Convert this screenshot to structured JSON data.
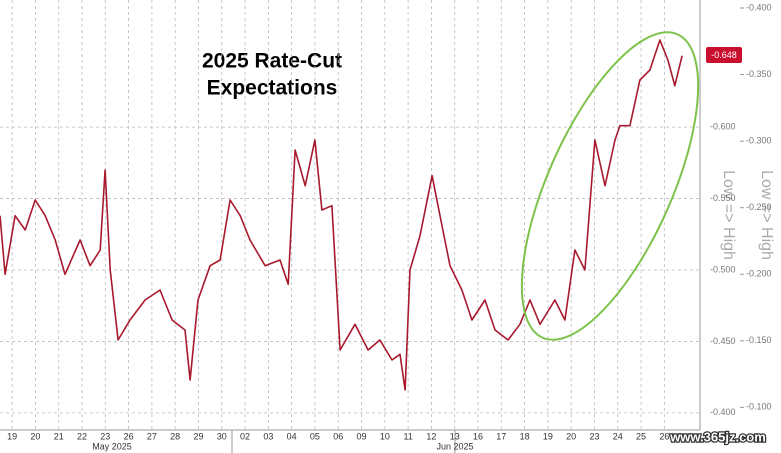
{
  "chart_data": {
    "type": "line",
    "title": "2025 Rate-Cut",
    "subtitle": "Expectations",
    "y_label": "Low => High",
    "y2_label": "Low => High",
    "current_value_label": "-0.648",
    "month_labels": [
      "May 2025",
      "Jun 2025"
    ],
    "watermark": "www.365jz.com",
    "xlim": [
      -0.52,
      29.53
    ],
    "xticks": [
      {
        "value": 0,
        "label": "19"
      },
      {
        "value": 1,
        "label": "20"
      },
      {
        "value": 2,
        "label": "21"
      },
      {
        "value": 3,
        "label": "22"
      },
      {
        "value": 4,
        "label": "23"
      },
      {
        "value": 5,
        "label": "26"
      },
      {
        "value": 6,
        "label": "27"
      },
      {
        "value": 7,
        "label": "28"
      },
      {
        "value": 8,
        "label": "29"
      },
      {
        "value": 9,
        "label": "30"
      },
      {
        "value": 10,
        "label": "02"
      },
      {
        "value": 11,
        "label": "03"
      },
      {
        "value": 12,
        "label": "04"
      },
      {
        "value": 13,
        "label": "05"
      },
      {
        "value": 14,
        "label": "06"
      },
      {
        "value": 15,
        "label": "09"
      },
      {
        "value": 16,
        "label": "10"
      },
      {
        "value": 17,
        "label": "11"
      },
      {
        "value": 18,
        "label": "12"
      },
      {
        "value": 19,
        "label": "13"
      },
      {
        "value": 20,
        "label": "16"
      },
      {
        "value": 21,
        "label": "17"
      },
      {
        "value": 22,
        "label": "18"
      },
      {
        "value": 23,
        "label": "19"
      },
      {
        "value": 24,
        "label": "20"
      },
      {
        "value": 25,
        "label": "23"
      },
      {
        "value": 26,
        "label": "24"
      },
      {
        "value": 27,
        "label": "25"
      },
      {
        "value": 28,
        "label": "26"
      }
    ],
    "ylim": [
      -0.388,
      -0.689
    ],
    "yticks": [
      {
        "value": -0.6,
        "label": "-0.600"
      },
      {
        "value": -0.55,
        "label": "-0.550"
      },
      {
        "value": -0.5,
        "label": "-0.500"
      },
      {
        "value": -0.45,
        "label": "-0.450"
      },
      {
        "value": -0.4,
        "label": "-0.400"
      }
    ],
    "y2lim": [
      -0.083,
      -0.406
    ],
    "y2ticks": [
      {
        "value": -0.4,
        "label": "-0.400"
      },
      {
        "value": -0.35,
        "label": "-0.350"
      },
      {
        "value": -0.3,
        "label": "-0.300"
      },
      {
        "value": -0.25,
        "label": "-0.250"
      },
      {
        "value": -0.2,
        "label": "-0.200"
      },
      {
        "value": -0.15,
        "label": "-0.150"
      },
      {
        "value": -0.1,
        "label": "-0.100"
      }
    ],
    "grid": true,
    "series": [
      {
        "name": "2025 Rate-Cut Expectations",
        "color": "#a8192e",
        "x": [
          -0.52,
          -0.3,
          0.13,
          0.56,
          0.99,
          1.42,
          1.85,
          2.27,
          2.92,
          3.35,
          3.78,
          3.99,
          4.21,
          4.55,
          5.06,
          5.71,
          6.35,
          6.87,
          7.42,
          7.64,
          7.98,
          8.5,
          8.93,
          9.36,
          9.79,
          10.21,
          10.86,
          11.5,
          11.85,
          12.15,
          12.58,
          13.0,
          13.3,
          13.73,
          14.08,
          14.72,
          15.28,
          15.79,
          16.31,
          16.65,
          16.87,
          17.08,
          17.51,
          18.03,
          18.37,
          18.8,
          19.31,
          19.74,
          20.3,
          20.73,
          21.29,
          21.8,
          22.23,
          22.66,
          23.3,
          23.73,
          24.16,
          24.59,
          25.02,
          25.45,
          25.88,
          26.09,
          26.52,
          26.95,
          27.38,
          27.81,
          28.15,
          28.45,
          28.76
        ],
        "values": [
          -0.538,
          -0.497,
          -0.538,
          -0.528,
          -0.549,
          -0.538,
          -0.521,
          -0.497,
          -0.521,
          -0.503,
          -0.514,
          -0.57,
          -0.5,
          -0.451,
          -0.465,
          -0.479,
          -0.486,
          -0.465,
          -0.458,
          -0.423,
          -0.479,
          -0.503,
          -0.507,
          -0.549,
          -0.538,
          -0.521,
          -0.503,
          -0.507,
          -0.49,
          -0.584,
          -0.559,
          -0.591,
          -0.542,
          -0.545,
          -0.444,
          -0.462,
          -0.444,
          -0.451,
          -0.437,
          -0.441,
          -0.416,
          -0.5,
          -0.524,
          -0.566,
          -0.538,
          -0.503,
          -0.486,
          -0.465,
          -0.479,
          -0.458,
          -0.451,
          -0.462,
          -0.479,
          -0.462,
          -0.479,
          -0.465,
          -0.514,
          -0.5,
          -0.591,
          -0.559,
          -0.591,
          -0.601,
          -0.601,
          -0.633,
          -0.64,
          -0.661,
          -0.647,
          -0.629,
          -0.65
        ]
      }
    ]
  }
}
